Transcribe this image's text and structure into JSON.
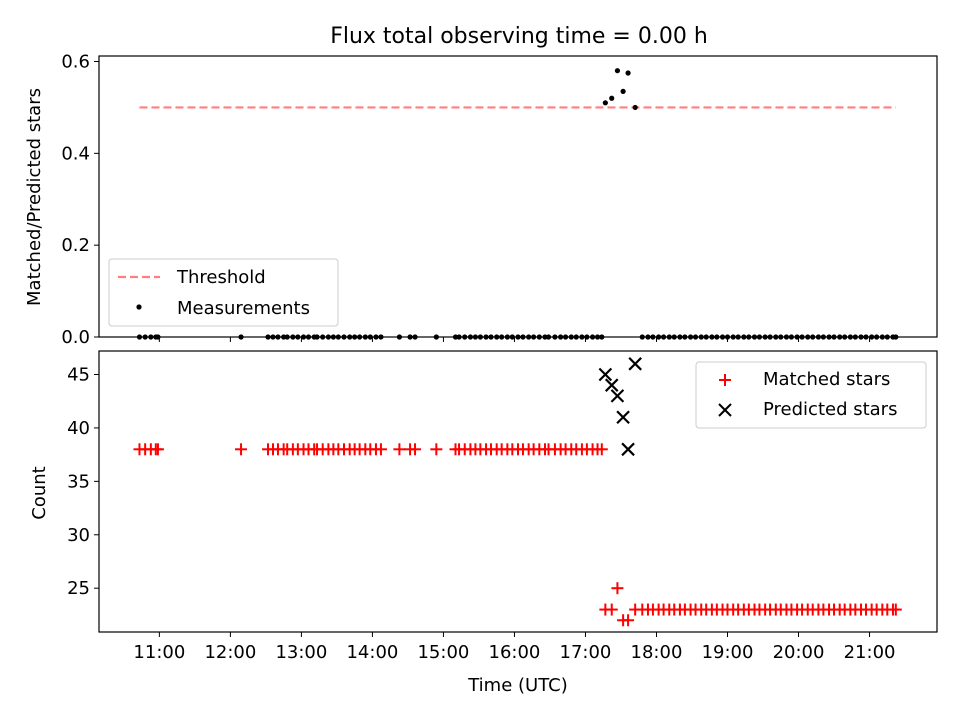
{
  "chart_data": [
    {
      "type": "scatter",
      "title": "Flux total observing time = 0.00 h",
      "xlabel": "",
      "ylabel": "Matched/Predicted stars",
      "ylim": [
        0,
        0.612
      ],
      "xlim": [
        10.15,
        21.95
      ],
      "yticks": [
        0.0,
        0.2,
        0.4,
        0.6
      ],
      "ytick_labels": [
        "0.0",
        "0.2",
        "0.4",
        "0.6"
      ],
      "legend_position": "lower-left",
      "threshold": {
        "name": "Threshold",
        "value": 0.5,
        "x_range": [
          10.72,
          21.37
        ],
        "color": "#ff7f7f"
      },
      "series": [
        {
          "name": "Measurements",
          "color": "#000000",
          "x": [
            17.28,
            17.37,
            17.45,
            17.53,
            17.6,
            17.7
          ],
          "y": [
            0.51,
            0.52,
            0.58,
            0.535,
            0.575,
            0.5
          ]
        }
      ]
    },
    {
      "type": "scatter",
      "xlabel": "Time (UTC)",
      "ylabel": "Count",
      "ylim": [
        20.9,
        47.2
      ],
      "xlim": [
        10.15,
        21.95
      ],
      "yticks": [
        25,
        30,
        35,
        40,
        45
      ],
      "ytick_labels": [
        "25",
        "30",
        "35",
        "40",
        "45"
      ],
      "xticks": [
        11,
        12,
        13,
        14,
        15,
        16,
        17,
        18,
        19,
        20,
        21
      ],
      "xtick_labels": [
        "11:00",
        "12:00",
        "13:00",
        "14:00",
        "15:00",
        "16:00",
        "17:00",
        "18:00",
        "19:00",
        "20:00",
        "21:00"
      ],
      "legend_position": "upper-right",
      "series": [
        {
          "name": "Matched stars",
          "color": "#ff0000",
          "marker": "+",
          "x": [
            10.72,
            10.8,
            10.88,
            10.95,
            10.98,
            12.15,
            12.53,
            12.6,
            12.67,
            12.75,
            12.8,
            12.88,
            12.95,
            13.03,
            13.1,
            13.18,
            13.22,
            13.3,
            13.38,
            13.45,
            13.52,
            13.6,
            13.68,
            13.75,
            13.82,
            13.9,
            13.97,
            14.05,
            14.12,
            14.38,
            14.53,
            14.6,
            14.9,
            15.17,
            15.22,
            15.3,
            15.38,
            15.45,
            15.52,
            15.6,
            15.67,
            15.75,
            15.82,
            15.9,
            15.97,
            16.05,
            16.12,
            16.2,
            16.27,
            16.35,
            16.43,
            16.48,
            16.57,
            16.65,
            16.72,
            16.8,
            16.87,
            16.95,
            17.02,
            17.1,
            17.17,
            17.23,
            17.28,
            17.37,
            17.45,
            17.53,
            17.6,
            17.7,
            17.8,
            17.88,
            17.95,
            18.03,
            18.1,
            18.18,
            18.25,
            18.33,
            18.4,
            18.48,
            18.55,
            18.63,
            18.7,
            18.78,
            18.85,
            18.93,
            19.0,
            19.08,
            19.15,
            19.23,
            19.3,
            19.38,
            19.45,
            19.53,
            19.6,
            19.68,
            19.75,
            19.83,
            19.9,
            19.98,
            20.05,
            20.13,
            20.2,
            20.28,
            20.35,
            20.43,
            20.5,
            20.58,
            20.65,
            20.73,
            20.8,
            20.88,
            20.95,
            21.03,
            21.1,
            21.18,
            21.25,
            21.33,
            21.37
          ],
          "y": [
            38,
            38,
            38,
            38,
            38,
            38,
            38,
            38,
            38,
            38,
            38,
            38,
            38,
            38,
            38,
            38,
            38,
            38,
            38,
            38,
            38,
            38,
            38,
            38,
            38,
            38,
            38,
            38,
            38,
            38,
            38,
            38,
            38,
            38,
            38,
            38,
            38,
            38,
            38,
            38,
            38,
            38,
            38,
            38,
            38,
            38,
            38,
            38,
            38,
            38,
            38,
            38,
            38,
            38,
            38,
            38,
            38,
            38,
            38,
            38,
            38,
            38,
            23,
            23,
            25,
            22,
            22,
            23,
            23,
            23,
            23,
            23,
            23,
            23,
            23,
            23,
            23,
            23,
            23,
            23,
            23,
            23,
            23,
            23,
            23,
            23,
            23,
            23,
            23,
            23,
            23,
            23,
            23,
            23,
            23,
            23,
            23,
            23,
            23,
            23,
            23,
            23,
            23,
            23,
            23,
            23,
            23,
            23,
            23,
            23,
            23,
            23,
            23,
            23,
            23,
            23,
            23
          ]
        },
        {
          "name": "Predicted stars",
          "color": "#000000",
          "marker": "x",
          "x": [
            17.28,
            17.37,
            17.45,
            17.53,
            17.6,
            17.7
          ],
          "y": [
            45,
            44,
            43,
            41,
            38,
            46
          ]
        }
      ]
    }
  ]
}
